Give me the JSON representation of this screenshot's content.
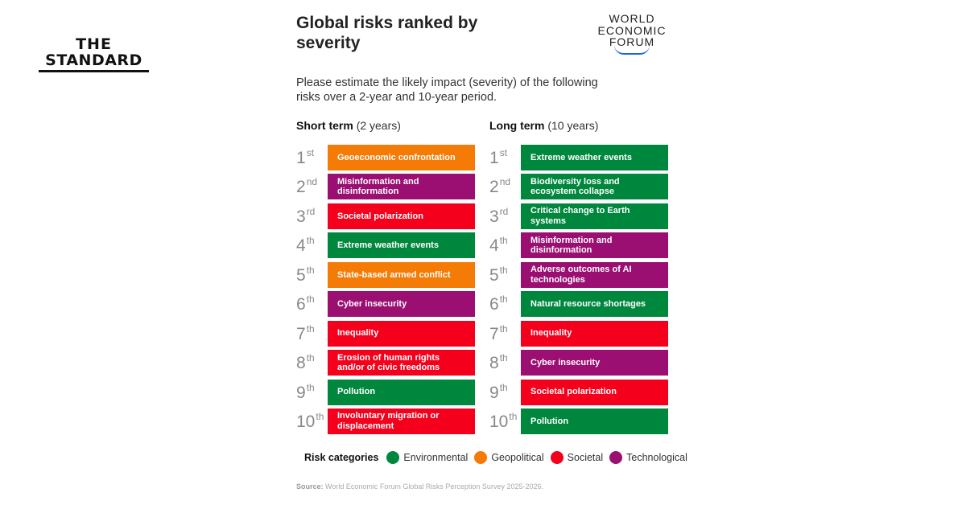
{
  "brand": {
    "line1": "THE",
    "line2": "STANDARD"
  },
  "title": "Global risks ranked by severity",
  "wef_logo": [
    "WORLD",
    "ECONOMIC",
    "FORUM"
  ],
  "description": "Please estimate the likely impact (severity) of the following risks over a 2-year and 10-year period.",
  "short_term": {
    "label": "Short term",
    "period": "(2 years)"
  },
  "long_term": {
    "label": "Long term",
    "period": "(10 years)"
  },
  "ranks": [
    {
      "n": "1",
      "s": "st"
    },
    {
      "n": "2",
      "s": "nd"
    },
    {
      "n": "3",
      "s": "rd"
    },
    {
      "n": "4",
      "s": "th"
    },
    {
      "n": "5",
      "s": "th"
    },
    {
      "n": "6",
      "s": "th"
    },
    {
      "n": "7",
      "s": "th"
    },
    {
      "n": "8",
      "s": "th"
    },
    {
      "n": "9",
      "s": "th"
    },
    {
      "n": "10",
      "s": "th"
    }
  ],
  "colors": {
    "Environmental": "#00873E",
    "Geopolitical": "#F47B06",
    "Societal": "#F5001C",
    "Technological": "#9B0F72"
  },
  "short_risks": [
    {
      "label": "Geoeconomic confrontation",
      "category": "Geopolitical"
    },
    {
      "label": "Misinformation and disinformation",
      "category": "Technological"
    },
    {
      "label": "Societal polarization",
      "category": "Societal"
    },
    {
      "label": "Extreme weather events",
      "category": "Environmental"
    },
    {
      "label": "State-based armed conflict",
      "category": "Geopolitical"
    },
    {
      "label": "Cyber insecurity",
      "category": "Technological"
    },
    {
      "label": "Inequality",
      "category": "Societal"
    },
    {
      "label": "Erosion of human rights and/or of civic freedoms",
      "category": "Societal"
    },
    {
      "label": "Pollution",
      "category": "Environmental"
    },
    {
      "label": "Involuntary migration or displacement",
      "category": "Societal"
    }
  ],
  "long_risks": [
    {
      "label": "Extreme weather events",
      "category": "Environmental"
    },
    {
      "label": "Biodiversity loss and ecosystem collapse",
      "category": "Environmental"
    },
    {
      "label": "Critical change to Earth systems",
      "category": "Environmental"
    },
    {
      "label": "Misinformation and disinformation",
      "category": "Technological"
    },
    {
      "label": "Adverse outcomes of AI technologies",
      "category": "Technological"
    },
    {
      "label": "Natural resource shortages",
      "category": "Environmental"
    },
    {
      "label": "Inequality",
      "category": "Societal"
    },
    {
      "label": "Cyber insecurity",
      "category": "Technological"
    },
    {
      "label": "Societal polarization",
      "category": "Societal"
    },
    {
      "label": "Pollution",
      "category": "Environmental"
    }
  ],
  "legend": {
    "title": "Risk categories",
    "items": [
      "Environmental",
      "Geopolitical",
      "Societal",
      "Technological"
    ]
  },
  "source": {
    "label": "Source:",
    "text": "World Economic Forum Global Risks Perception Survey 2025-2026."
  }
}
